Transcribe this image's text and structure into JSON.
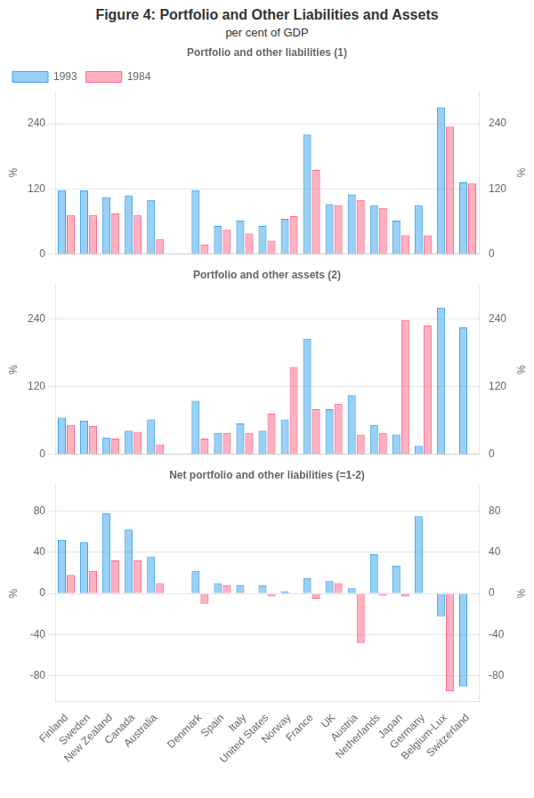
{
  "chart_data": [
    {
      "type": "bar",
      "title": "Figure 4: Portfolio and Other Liabilities and Assets",
      "subtitle": "per cent of GDP",
      "annotations": [
        "Portfolio and other liabilities (1)"
      ],
      "categories": [
        "Finland",
        "Sweden",
        "New Zealand",
        "Canada",
        "Australia",
        null,
        "Denmark",
        "Spain",
        "Italy",
        "United States",
        "Norway",
        "France",
        "UK",
        "Austria",
        "Netherlands",
        "Japan",
        "Germany",
        "Belgium-Lux",
        "Switzerland"
      ],
      "series": [
        {
          "name": "1993",
          "values": [
            118,
            118,
            105,
            108,
            100,
            null,
            118,
            52,
            62,
            52,
            65,
            220,
            92,
            110,
            90,
            62,
            90,
            270,
            132
          ]
        },
        {
          "name": "1984",
          "values": [
            72,
            72,
            75,
            72,
            28,
            null,
            18,
            45,
            38,
            25,
            70,
            155,
            90,
            100,
            85,
            35,
            35,
            235,
            130
          ]
        }
      ],
      "ylim": [
        0,
        300
      ],
      "yticks": [
        0,
        120,
        240
      ],
      "y2lim": [
        0,
        300
      ],
      "y2ticks": [
        0,
        120,
        240
      ],
      "ylabel": "%",
      "y2label": "%",
      "grid": true,
      "legend": "upper left",
      "tick_labels": "y"
    },
    {
      "type": "bar",
      "annotations": [
        "Portfolio and other assets (2)"
      ],
      "categories": [
        "Finland",
        "Sweden",
        "New Zealand",
        "Canada",
        "Australia",
        null,
        "Denmark",
        "Spain",
        "Italy",
        "United States",
        "Norway",
        "France",
        "UK",
        "Austria",
        "Netherlands",
        "Japan",
        "Germany",
        "Belgium-Lux",
        "Switzerland"
      ],
      "series": [
        {
          "name": "1993",
          "values": [
            65,
            60,
            30,
            42,
            62,
            null,
            95,
            38,
            55,
            42,
            62,
            205,
            80,
            105,
            52,
            35,
            15,
            260,
            225
          ]
        },
        {
          "name": "1984",
          "values": [
            52,
            50,
            28,
            40,
            18,
            null,
            28,
            38,
            38,
            72,
            155,
            80,
            90,
            35,
            38,
            238,
            228,
            null,
            null
          ]
        }
      ],
      "ylim": [
        0,
        300
      ],
      "yticks": [
        0,
        120,
        240
      ],
      "y2lim": [
        0,
        300
      ],
      "y2ticks": [
        0,
        120,
        240
      ],
      "ylabel": "%",
      "y2label": "%",
      "grid": true,
      "tick_labels": "y"
    },
    {
      "type": "bar",
      "annotations": [
        "Net portfolio and other liabilities (=1-2)"
      ],
      "categories": [
        "Finland",
        "Sweden",
        "New Zealand",
        "Canada",
        "Australia",
        null,
        "Denmark",
        "Spain",
        "Italy",
        "United States",
        "Norway",
        "France",
        "UK",
        "Austria",
        "Netherlands",
        "Japan",
        "Germany",
        "Belgium-Lux",
        "Switzerland"
      ],
      "series": [
        {
          "name": "1993",
          "values": [
            52,
            50,
            78,
            62,
            36,
            null,
            22,
            10,
            8,
            8,
            2,
            15,
            12,
            5,
            38,
            27,
            75,
            -22,
            -90
          ]
        },
        {
          "name": "1984",
          "values": [
            18,
            22,
            32,
            32,
            10,
            null,
            -10,
            8,
            0,
            -3,
            0,
            -5,
            10,
            -48,
            -2,
            -3,
            0,
            -95,
            null
          ]
        }
      ],
      "ylim": [
        -105,
        105
      ],
      "yticks": [
        -80,
        -40,
        0,
        40,
        80
      ],
      "y2lim": [
        -105,
        105
      ],
      "y2ticks": [
        -80,
        -40,
        0,
        40,
        80
      ],
      "ylabel": "%",
      "y2label": "%",
      "grid": true
    }
  ]
}
